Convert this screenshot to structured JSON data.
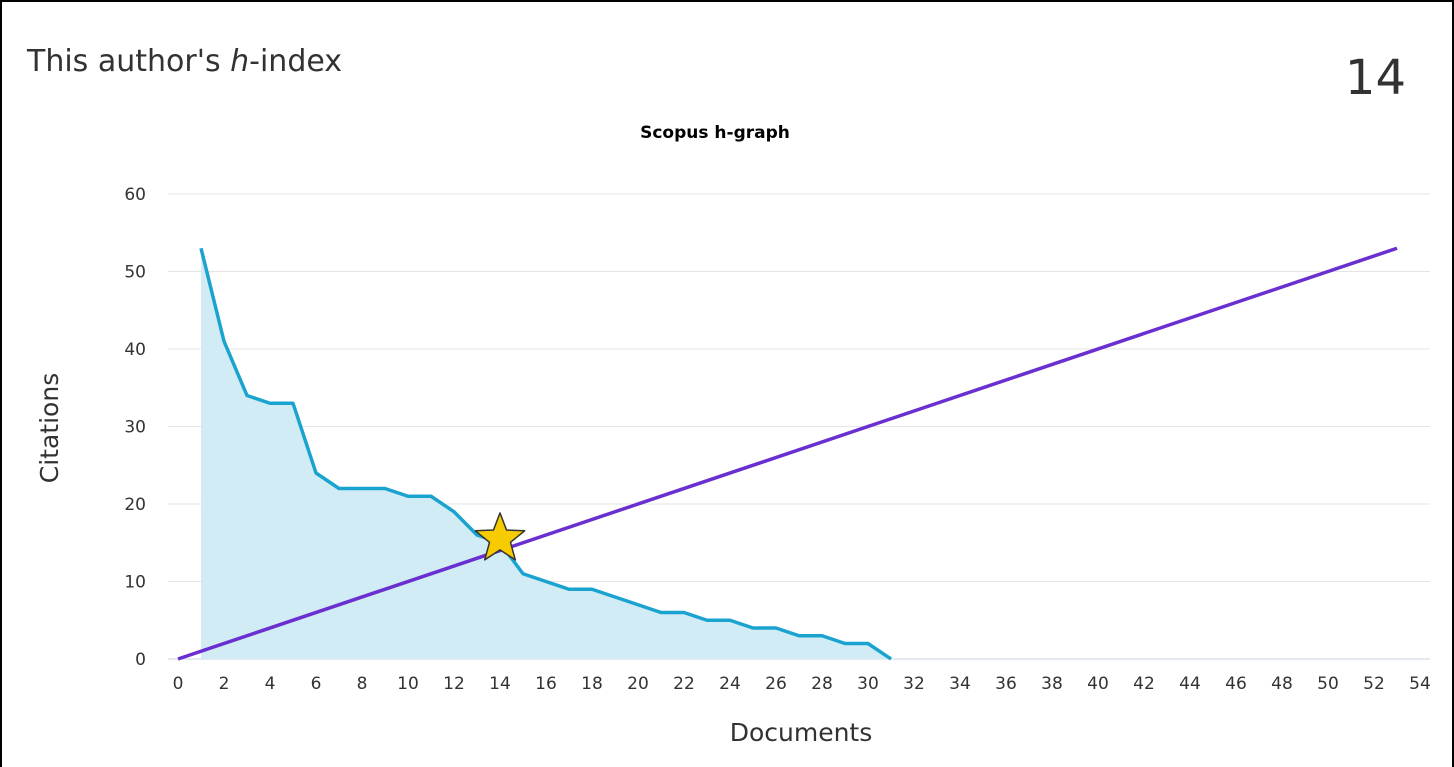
{
  "panel": {
    "title_prefix": "This author's ",
    "title_italic": "h",
    "title_suffix": "-index",
    "h_index": "14"
  },
  "chart_data": {
    "type": "line",
    "title": "Scopus h-graph",
    "xlabel": "Documents",
    "ylabel": "Citations",
    "xlim": [
      0,
      54
    ],
    "ylim": [
      0,
      60
    ],
    "x_ticks": [
      0,
      2,
      4,
      6,
      8,
      10,
      12,
      14,
      16,
      18,
      20,
      22,
      24,
      26,
      28,
      30,
      32,
      34,
      36,
      38,
      40,
      42,
      44,
      46,
      48,
      50,
      52,
      54
    ],
    "y_ticks": [
      0,
      10,
      20,
      30,
      40,
      50,
      60
    ],
    "grid": "horizontal",
    "series": [
      {
        "kind": "area",
        "color": "#1ba3d0",
        "fill": "#d1ecf5",
        "x": [
          1,
          2,
          3,
          4,
          5,
          6,
          7,
          8,
          9,
          10,
          11,
          12,
          13,
          14,
          15,
          16,
          17,
          18,
          19,
          20,
          21,
          22,
          23,
          24,
          25,
          26,
          27,
          28,
          29,
          30,
          31
        ],
        "y": [
          53,
          41,
          34,
          33,
          33,
          24,
          22,
          22,
          22,
          21,
          21,
          19,
          16,
          15,
          11,
          10,
          9,
          9,
          8,
          7,
          6,
          6,
          5,
          5,
          4,
          4,
          3,
          3,
          2,
          2,
          0
        ]
      },
      {
        "kind": "line",
        "color": "#6a2fd0",
        "x": [
          0,
          53
        ],
        "y": [
          0,
          53
        ]
      }
    ],
    "marker": {
      "shape": "star",
      "x": 14,
      "y": 15.5,
      "color": "#f6cc00"
    }
  }
}
